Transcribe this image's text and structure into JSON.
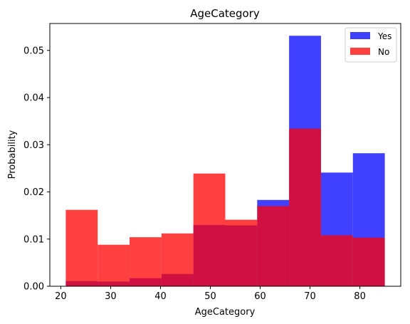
{
  "chart_data": {
    "type": "bar",
    "title": "AgeCategory",
    "xlabel": "AgeCategory",
    "ylabel": "Probability",
    "xlim": [
      17.8,
      88.2
    ],
    "ylim": [
      0,
      0.0557
    ],
    "bin_edges": [
      21,
      27.4,
      33.8,
      40.2,
      46.6,
      53.0,
      59.4,
      65.8,
      72.2,
      78.6,
      85
    ],
    "x_ticks": [
      20,
      30,
      40,
      50,
      60,
      70,
      80
    ],
    "y_ticks": [
      0.0,
      0.01,
      0.02,
      0.03,
      0.04,
      0.05
    ],
    "y_tick_labels": [
      "0.00",
      "0.01",
      "0.02",
      "0.03",
      "0.04",
      "0.05"
    ],
    "grid": false,
    "legend_position": "top-right",
    "series": [
      {
        "name": "Yes",
        "color": "#0000ff",
        "alpha": 0.75,
        "values": [
          0.0011,
          0.001,
          0.0017,
          0.0026,
          0.013,
          0.0129,
          0.0183,
          0.0531,
          0.0241,
          0.0282
        ]
      },
      {
        "name": "No",
        "color": "#ff0000",
        "alpha": 0.75,
        "values": [
          0.0162,
          0.0088,
          0.0104,
          0.0112,
          0.0239,
          0.0141,
          0.017,
          0.0334,
          0.0108,
          0.0103
        ]
      }
    ]
  }
}
